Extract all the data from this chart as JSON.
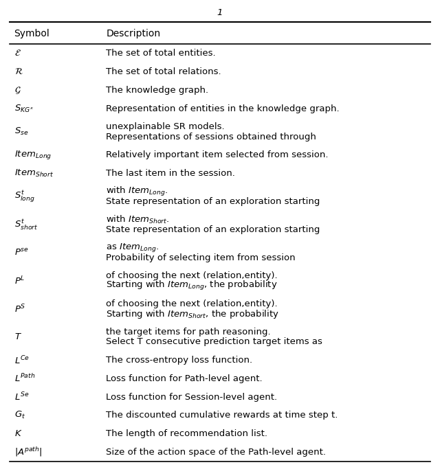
{
  "title": "1",
  "col1_header": "Symbol",
  "col2_header": "Description",
  "rows": [
    {
      "symbol": "$\\mathcal{E}$",
      "description": "The set of total entities."
    },
    {
      "symbol": "$\\mathcal{R}$",
      "description": "The set of total relations."
    },
    {
      "symbol": "$\\mathcal{G}$",
      "description": "The knowledge graph."
    },
    {
      "symbol": "$S_{KG^x}$",
      "description": "Representation of entities in the knowledge graph."
    },
    {
      "symbol": "$S_{se}$",
      "description": "Representations of sessions obtained through\nunexplainable SR models."
    },
    {
      "symbol": "$Item_{Long}$",
      "description": "Relatively important item selected from session."
    },
    {
      "symbol": "$Item_{Short}$",
      "description": "The last item in the session."
    },
    {
      "symbol": "$S^{t}_{long}$",
      "description": "State representation of an exploration starting\nwith $Item_{Long}$."
    },
    {
      "symbol": "$S^{t}_{short}$",
      "description": "State representation of an exploration starting\nwith $Item_{Short}$."
    },
    {
      "symbol": "$P^{se}$",
      "description": "Probability of selecting item from session\nas $Item_{Long}$."
    },
    {
      "symbol": "$P^{L}$",
      "description": "Starting with $Item_{Long}$, the probability\nof choosing the next (relation,entity)."
    },
    {
      "symbol": "$P^{S}$",
      "description": "Starting with $Item_{Short}$, the probability\nof choosing the next (relation,entity)."
    },
    {
      "symbol": "$T$",
      "description": "Select T consecutive prediction target items as\nthe target items for path reasoning."
    },
    {
      "symbol": "$L^{Ce}$",
      "description": "The cross-entropy loss function."
    },
    {
      "symbol": "$L^{Path}$",
      "description": "Loss function for Path-level agent."
    },
    {
      "symbol": "$L^{Se}$",
      "description": "Loss function for Session-level agent."
    },
    {
      "symbol": "$G_t$",
      "description": "The discounted cumulative rewards at time step t."
    },
    {
      "symbol": "$K$",
      "description": "The length of recommendation list."
    },
    {
      "symbol": "$|A^{path}|$",
      "description": "Size of the action space of the Path-level agent."
    }
  ],
  "bg_color": "white",
  "text_color": "black",
  "line_color": "black",
  "font_size": 9.5,
  "header_font_size": 10
}
